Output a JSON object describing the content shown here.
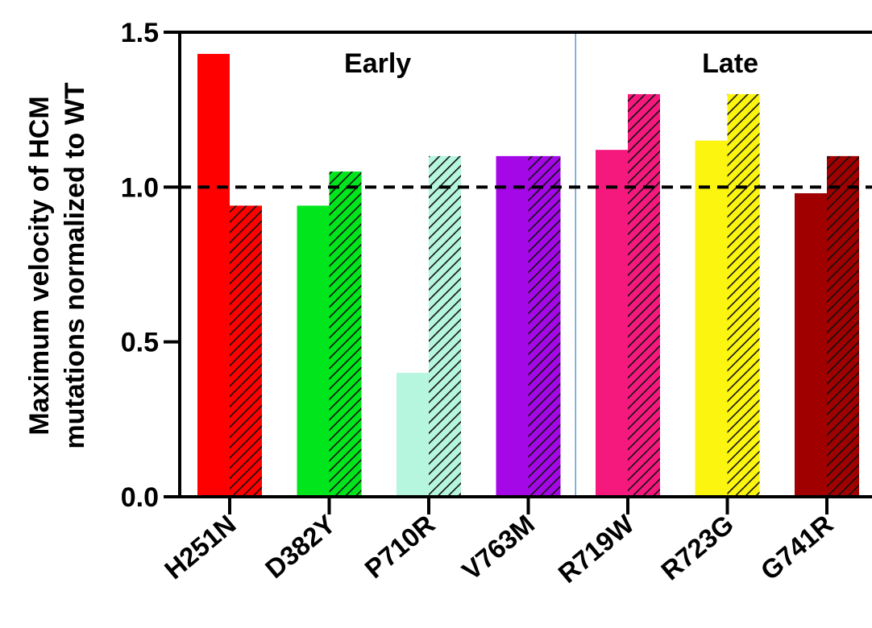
{
  "chart_data": {
    "type": "bar",
    "categories": [
      "H251N",
      "D382Y",
      "P710R",
      "V763M",
      "R719W",
      "R723G",
      "G741R"
    ],
    "colors": [
      "#ff0000",
      "#00e51c",
      "#b6f5de",
      "#a508e6",
      "#f5197e",
      "#fcf50f",
      "#a00000"
    ],
    "series": [
      {
        "name": "",
        "pattern": "solid",
        "values": [
          1.43,
          0.94,
          0.4,
          1.1,
          1.12,
          1.15,
          0.98
        ]
      },
      {
        "name": "",
        "pattern": "hatched",
        "values": [
          0.94,
          1.05,
          1.1,
          1.1,
          1.3,
          1.3,
          1.1
        ]
      }
    ],
    "ylabel_lines": [
      "Maximum velocity of HCM",
      "mutations normalized to WT"
    ],
    "ylim": [
      0,
      1.5
    ],
    "yticks": [
      "0.0",
      "0.5",
      "1.0",
      "1.5"
    ],
    "reference_line": 1.0,
    "group_labels": [
      "Early",
      "Late"
    ],
    "group_divider_after_category": "V763M",
    "grid": false
  }
}
